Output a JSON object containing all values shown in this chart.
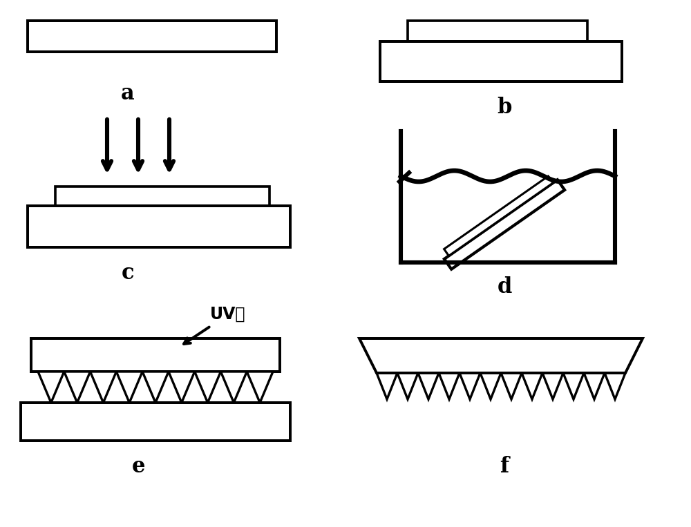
{
  "background_color": "#ffffff",
  "line_color": "#000000",
  "line_width": 2.2,
  "label_fontsize": 22,
  "annotation_fontsize": 17,
  "fig_width": 10.0,
  "fig_height": 7.63,
  "labels": [
    "a",
    "b",
    "c",
    "d",
    "e",
    "f"
  ],
  "uv_label": "UV胶"
}
